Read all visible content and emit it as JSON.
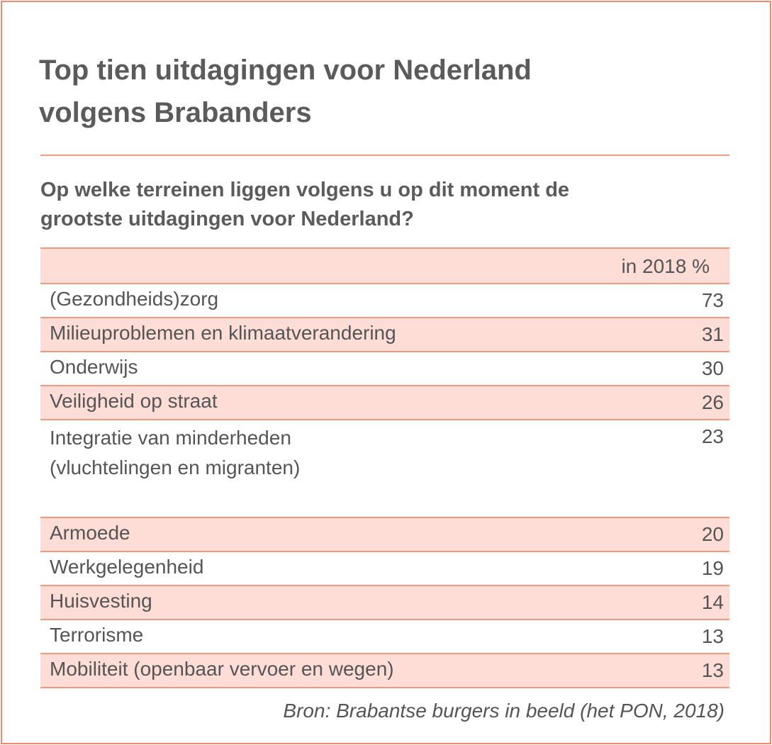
{
  "title_lines": [
    "Top tien uitdagingen voor Nederland",
    "volgens Brabanders"
  ],
  "question_lines": [
    "Op welke terreinen liggen volgens u op dit moment de",
    "grootste uitdagingen voor Nederland?"
  ],
  "source": "Bron: Brabantse burgers in beeld (het PON, 2018)",
  "colors": {
    "accent": "#ef8a6f",
    "row_shade": "#fdddd6",
    "text": "#555555"
  },
  "chart_data": {
    "type": "table",
    "column_header": "in 2018 %",
    "rows": [
      {
        "label_lines": [
          "(Gezondheids)zorg"
        ],
        "value": 73
      },
      {
        "label_lines": [
          "Milieuproblemen en klimaatverandering"
        ],
        "value": 31
      },
      {
        "label_lines": [
          "Onderwijs"
        ],
        "value": 30
      },
      {
        "label_lines": [
          "Veiligheid op straat"
        ],
        "value": 26
      },
      {
        "label_lines": [
          "Integratie van minderheden",
          "(vluchtelingen en migranten)"
        ],
        "value": 23
      },
      {
        "label_lines": [
          "Armoede"
        ],
        "value": 20
      },
      {
        "label_lines": [
          "Werkgelegenheid"
        ],
        "value": 19
      },
      {
        "label_lines": [
          "Huisvesting"
        ],
        "value": 14
      },
      {
        "label_lines": [
          "Terrorisme"
        ],
        "value": 13
      },
      {
        "label_lines": [
          "Mobiliteit (openbaar vervoer en wegen)"
        ],
        "value": 13
      }
    ]
  }
}
